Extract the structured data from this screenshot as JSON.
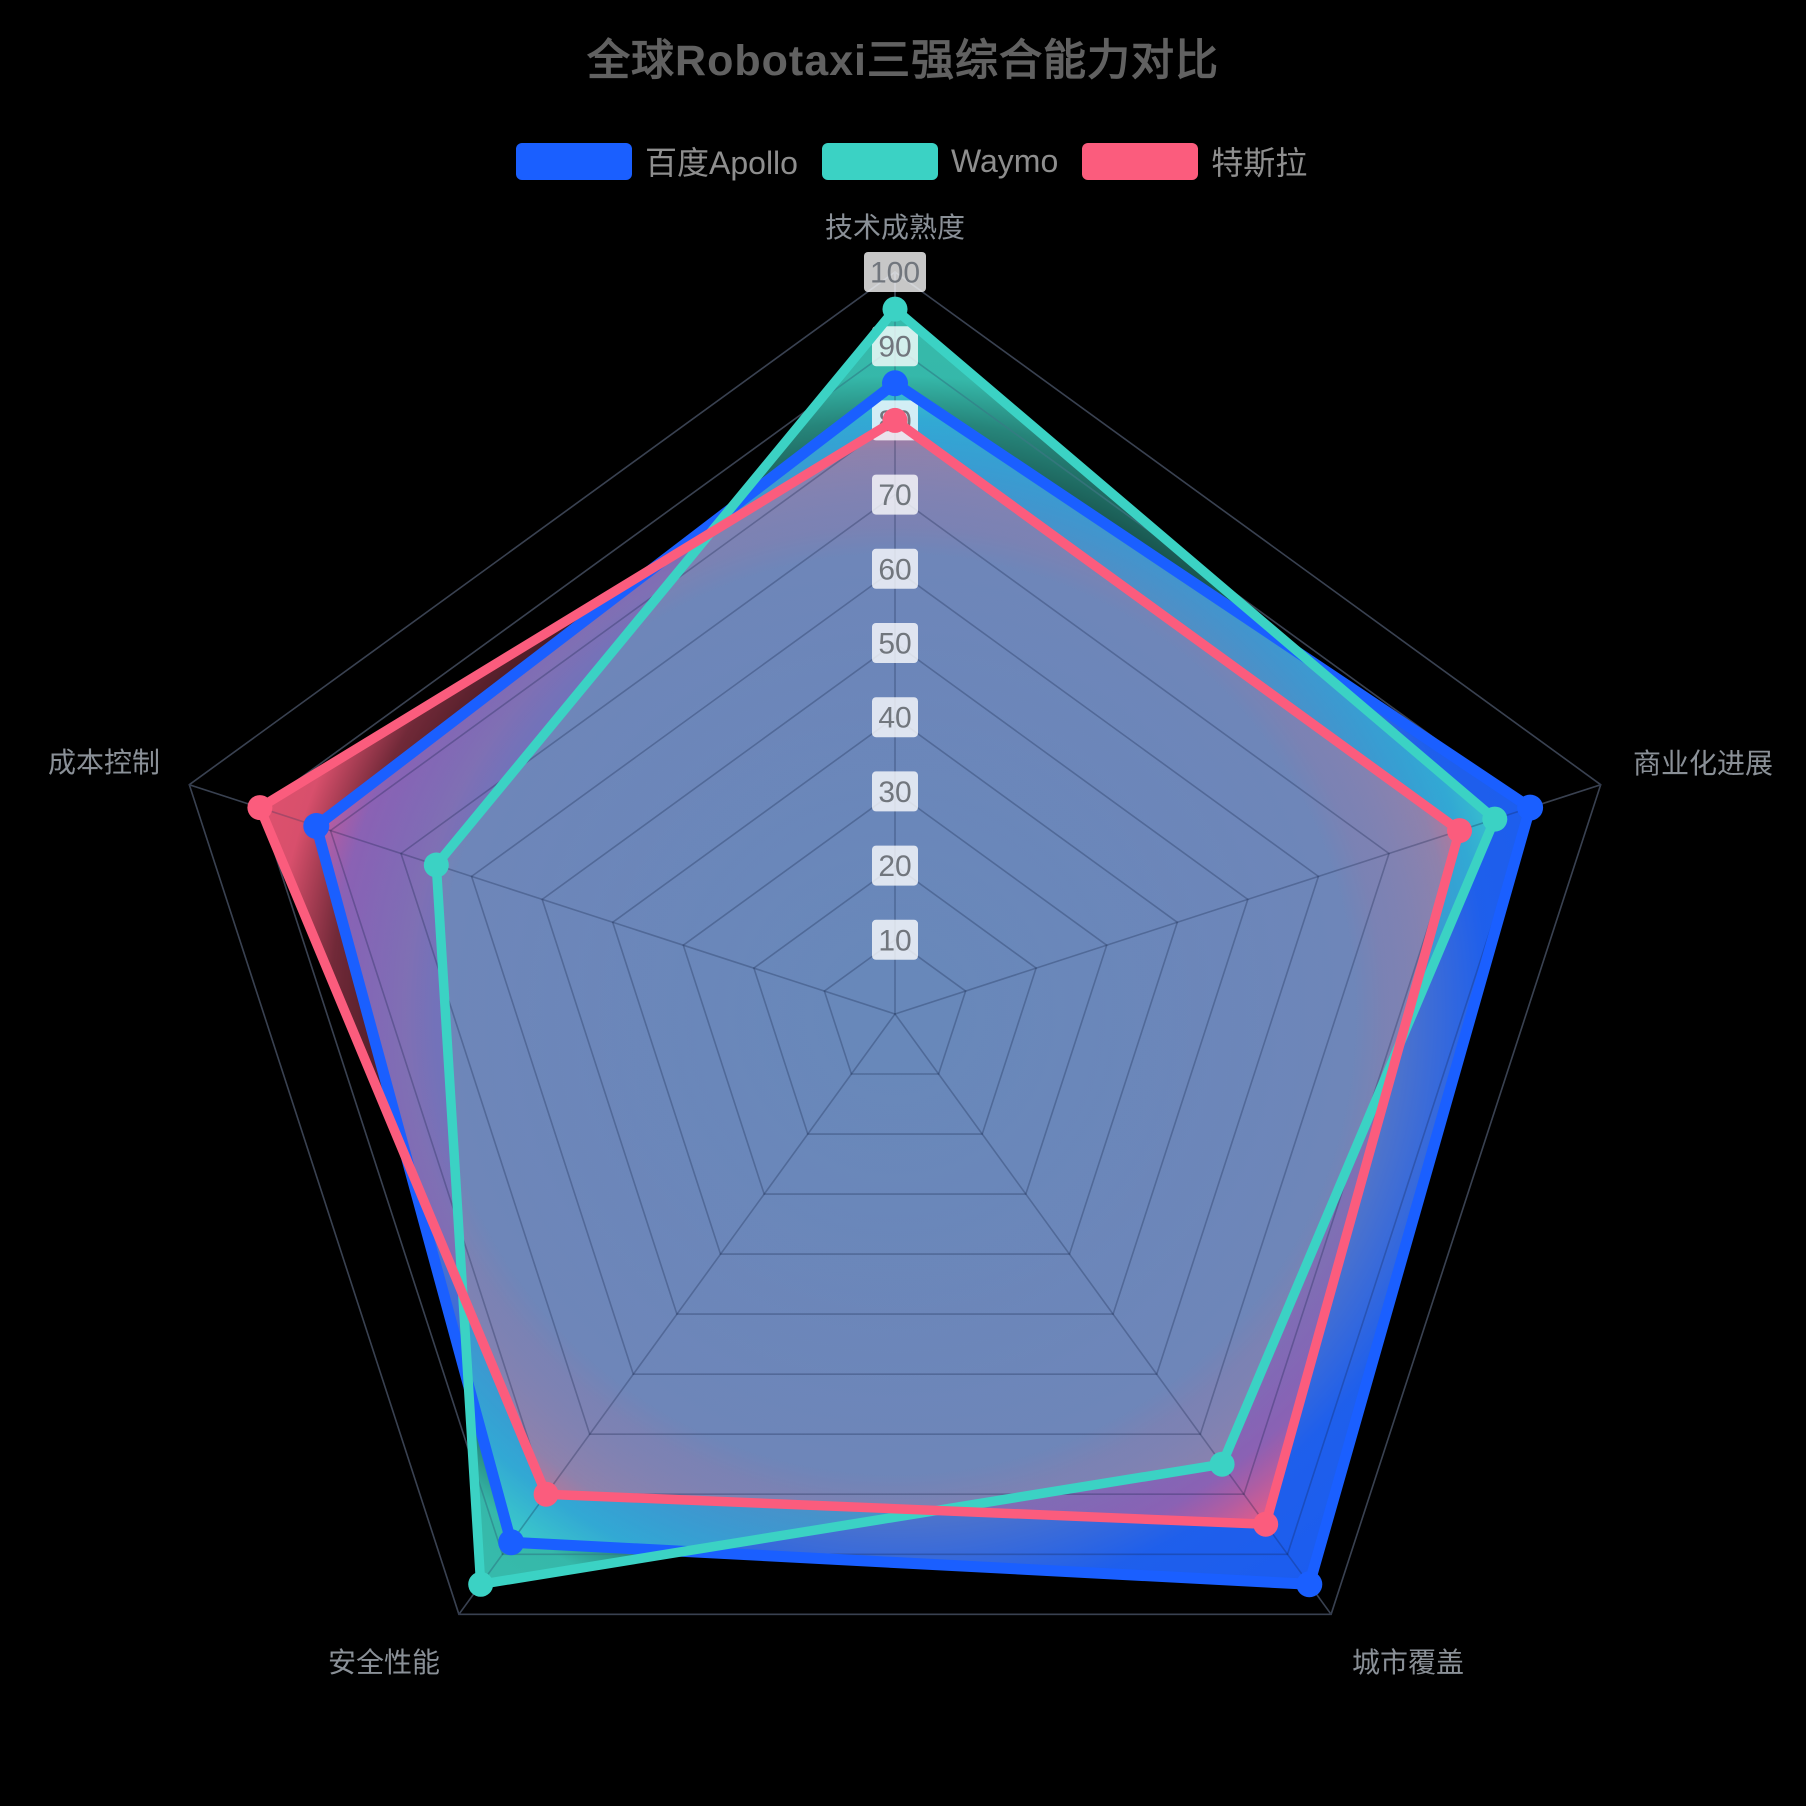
{
  "chart_data": {
    "type": "radar",
    "title": "全球Robotaxi三强综合能力对比",
    "legend_position": "top-center",
    "grid": "pentagon, 10 concentric levels, spokes visible",
    "max": 100,
    "ticks": [
      10,
      20,
      30,
      40,
      50,
      60,
      70,
      80,
      90,
      100
    ],
    "indicators": [
      {
        "name": "技术成熟度",
        "max": 100
      },
      {
        "name": "商业化进展",
        "max": 100
      },
      {
        "name": "城市覆盖",
        "max": 100
      },
      {
        "name": "安全性能",
        "max": 100
      },
      {
        "name": "成本控制",
        "max": 100
      }
    ],
    "series": [
      {
        "name": "百度Apollo",
        "color": "#1a5fff",
        "values": [
          85,
          90,
          95,
          88,
          82
        ]
      },
      {
        "name": "Waymo",
        "color": "#3bd2c4",
        "values": [
          95,
          85,
          75,
          95,
          65
        ]
      },
      {
        "name": "特斯拉",
        "color": "#fb5c7d",
        "values": [
          80,
          80,
          85,
          80,
          90
        ]
      }
    ],
    "colors": {
      "background": "#000000",
      "title_text": "#616161",
      "legend_text": "#8e8e8e",
      "axis_name_text": "#8a9097",
      "tick_text": "#71767d",
      "tick_box_bg": "rgba(255,255,255,0.78)",
      "grid_line": "#596069"
    }
  }
}
